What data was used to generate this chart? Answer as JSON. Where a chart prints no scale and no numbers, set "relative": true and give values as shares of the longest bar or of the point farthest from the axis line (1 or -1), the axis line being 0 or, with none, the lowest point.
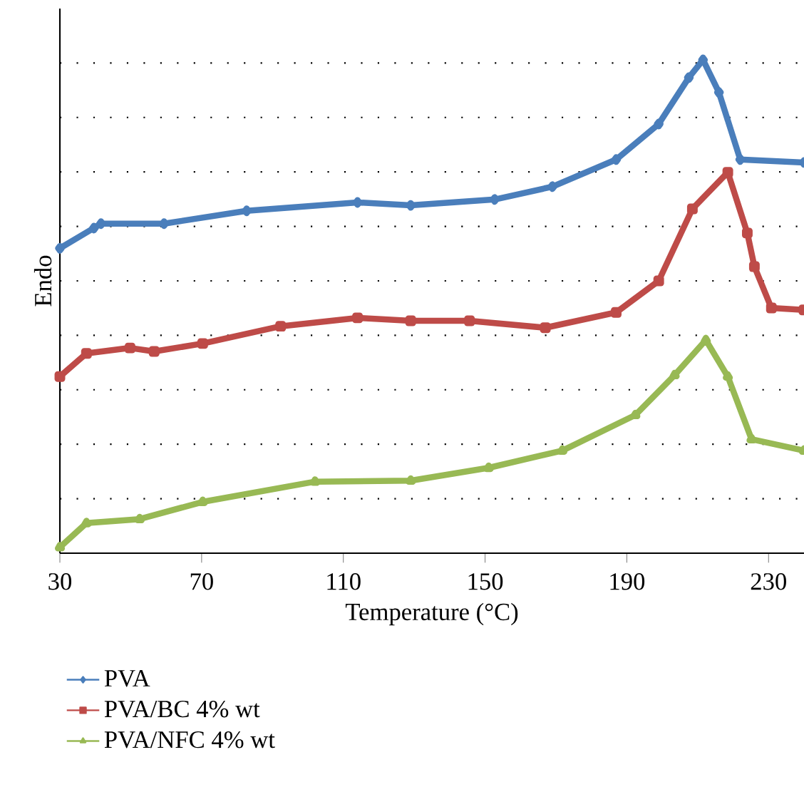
{
  "chart_data": {
    "type": "line",
    "xlabel": "Temperature (°C)",
    "ylabel": "Endo",
    "relative": true,
    "tick_labels": "x",
    "grid": "y",
    "legend": "bottom",
    "xlim": [
      30,
      240
    ],
    "xticks": [
      30,
      70,
      110,
      150,
      190,
      230
    ],
    "series": [
      {
        "name": "PVA",
        "color": "#4a7ebb",
        "marker": "diamond",
        "x": [
          30,
          39.6,
          41.6,
          59.4,
          82.7,
          114,
          129,
          152.7,
          169,
          187,
          199,
          207.5,
          211.5,
          216,
          222,
          240
        ],
        "values": [
          0.618,
          0.659,
          0.668,
          0.668,
          0.694,
          0.711,
          0.705,
          0.717,
          0.743,
          0.798,
          0.87,
          0.964,
          1.0,
          0.934,
          0.798,
          0.792
        ]
      },
      {
        "name": "PVA/BC 4% wt",
        "color": "#be4b48",
        "marker": "square",
        "x": [
          30,
          37.5,
          49.8,
          56.6,
          70.3,
          92.3,
          114,
          129,
          145.6,
          167,
          187,
          199,
          208.5,
          218.5,
          224,
          226,
          230.8,
          240
        ],
        "values": [
          0.358,
          0.405,
          0.416,
          0.409,
          0.425,
          0.46,
          0.477,
          0.471,
          0.471,
          0.457,
          0.488,
          0.552,
          0.698,
          0.772,
          0.649,
          0.581,
          0.497,
          0.493
        ]
      },
      {
        "name": "PVA/NFC 4% wt",
        "color": "#98b954",
        "marker": "triangle",
        "x": [
          30,
          37.5,
          52.5,
          70.3,
          102,
          129,
          151,
          171.8,
          192.4,
          203.5,
          212.3,
          218.5,
          225.2,
          240
        ],
        "values": [
          0.012,
          0.061,
          0.069,
          0.104,
          0.145,
          0.147,
          0.173,
          0.208,
          0.28,
          0.361,
          0.432,
          0.358,
          0.231,
          0.208
        ]
      }
    ]
  }
}
